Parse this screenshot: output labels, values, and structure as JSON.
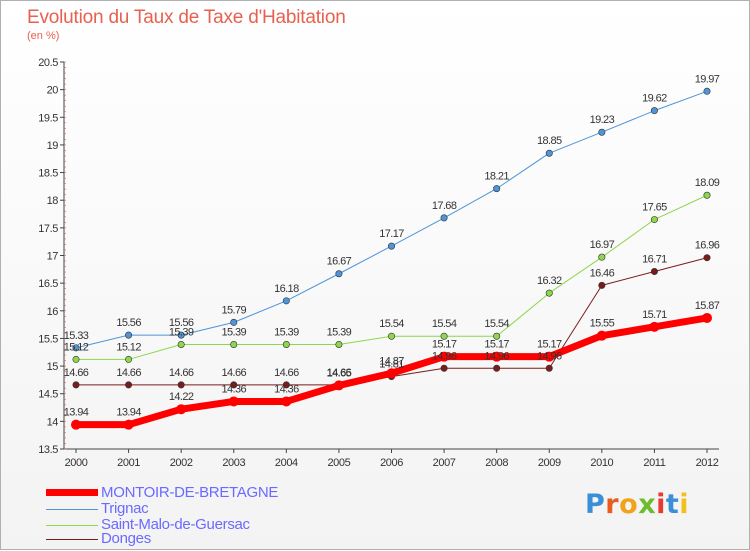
{
  "title": "Evolution du Taux de Taxe d'Habitation",
  "unit": "(en %)",
  "brand": {
    "letters": [
      "P",
      "r",
      "o",
      "x",
      "i",
      "t",
      "i"
    ],
    "colors": [
      "#3b8fd6",
      "#e85d1f",
      "#f2a21b",
      "#6bbd2e",
      "#e83a2f",
      "#3b8fd6",
      "#f2c01b"
    ]
  },
  "chart_data": {
    "type": "line",
    "title": "Evolution du Taux de Taxe d'Habitation",
    "ylabel": "(en %)",
    "ylim": [
      13.5,
      20.5
    ],
    "yticks": [
      "13.5",
      "14",
      "14.5",
      "15",
      "15.5",
      "16",
      "16.5",
      "17",
      "17.5",
      "18",
      "18.5",
      "19",
      "19.5",
      "20",
      "20.5"
    ],
    "x": [
      "2000",
      "2001",
      "2002",
      "2003",
      "2004",
      "2005",
      "2006",
      "2007",
      "2008",
      "2009",
      "2010",
      "2011",
      "2012"
    ],
    "grid": false,
    "legend_position": "bottom-left",
    "series": [
      {
        "name": "MONTOIR-DE-BRETAGNE",
        "color": "#ff0000",
        "width": 7,
        "values": [
          13.94,
          13.94,
          14.22,
          14.36,
          14.36,
          14.65,
          14.87,
          15.17,
          15.17,
          15.17,
          15.55,
          15.71,
          15.87
        ],
        "labels": [
          "13.94",
          "13.94",
          "14.22",
          "14.36",
          "14.36",
          "14.65",
          "14.87",
          "15.17",
          "15.17",
          "15.17",
          "15.55",
          "15.71",
          "15.87"
        ]
      },
      {
        "name": "Trignac",
        "color": "#4d94d8",
        "width": 1,
        "values": [
          15.33,
          15.56,
          15.56,
          15.79,
          16.18,
          16.67,
          17.17,
          17.68,
          18.21,
          18.85,
          19.23,
          19.62,
          19.97
        ],
        "labels": [
          "15.33",
          "15.56",
          "15.56",
          "15.79",
          "16.18",
          "16.67",
          "17.17",
          "17.68",
          "18.21",
          "18.85",
          "19.23",
          "19.62",
          "19.97"
        ]
      },
      {
        "name": "Saint-Malo-de-Guersac",
        "color": "#8ed64d",
        "width": 1,
        "values": [
          15.12,
          15.12,
          15.39,
          15.39,
          15.39,
          15.39,
          15.54,
          15.54,
          15.54,
          16.32,
          16.97,
          17.65,
          18.09
        ],
        "labels": [
          "15.12",
          "15.12",
          "15.39",
          "15.39",
          "15.39",
          "15.39",
          "15.54",
          "15.54",
          "15.54",
          "16.32",
          "16.97",
          "17.65",
          "18.09"
        ]
      },
      {
        "name": "Donges",
        "color": "#7a1c1c",
        "width": 1,
        "values": [
          14.66,
          14.66,
          14.66,
          14.66,
          14.66,
          14.66,
          14.81,
          14.96,
          14.96,
          14.96,
          16.46,
          16.71,
          16.96
        ],
        "labels": [
          "14.66",
          "14.66",
          "14.66",
          "14.66",
          "14.66",
          "14.66",
          "14.81",
          "14.96",
          "14.96",
          "14.96",
          "16.46",
          "16.71",
          "16.96"
        ]
      }
    ]
  }
}
